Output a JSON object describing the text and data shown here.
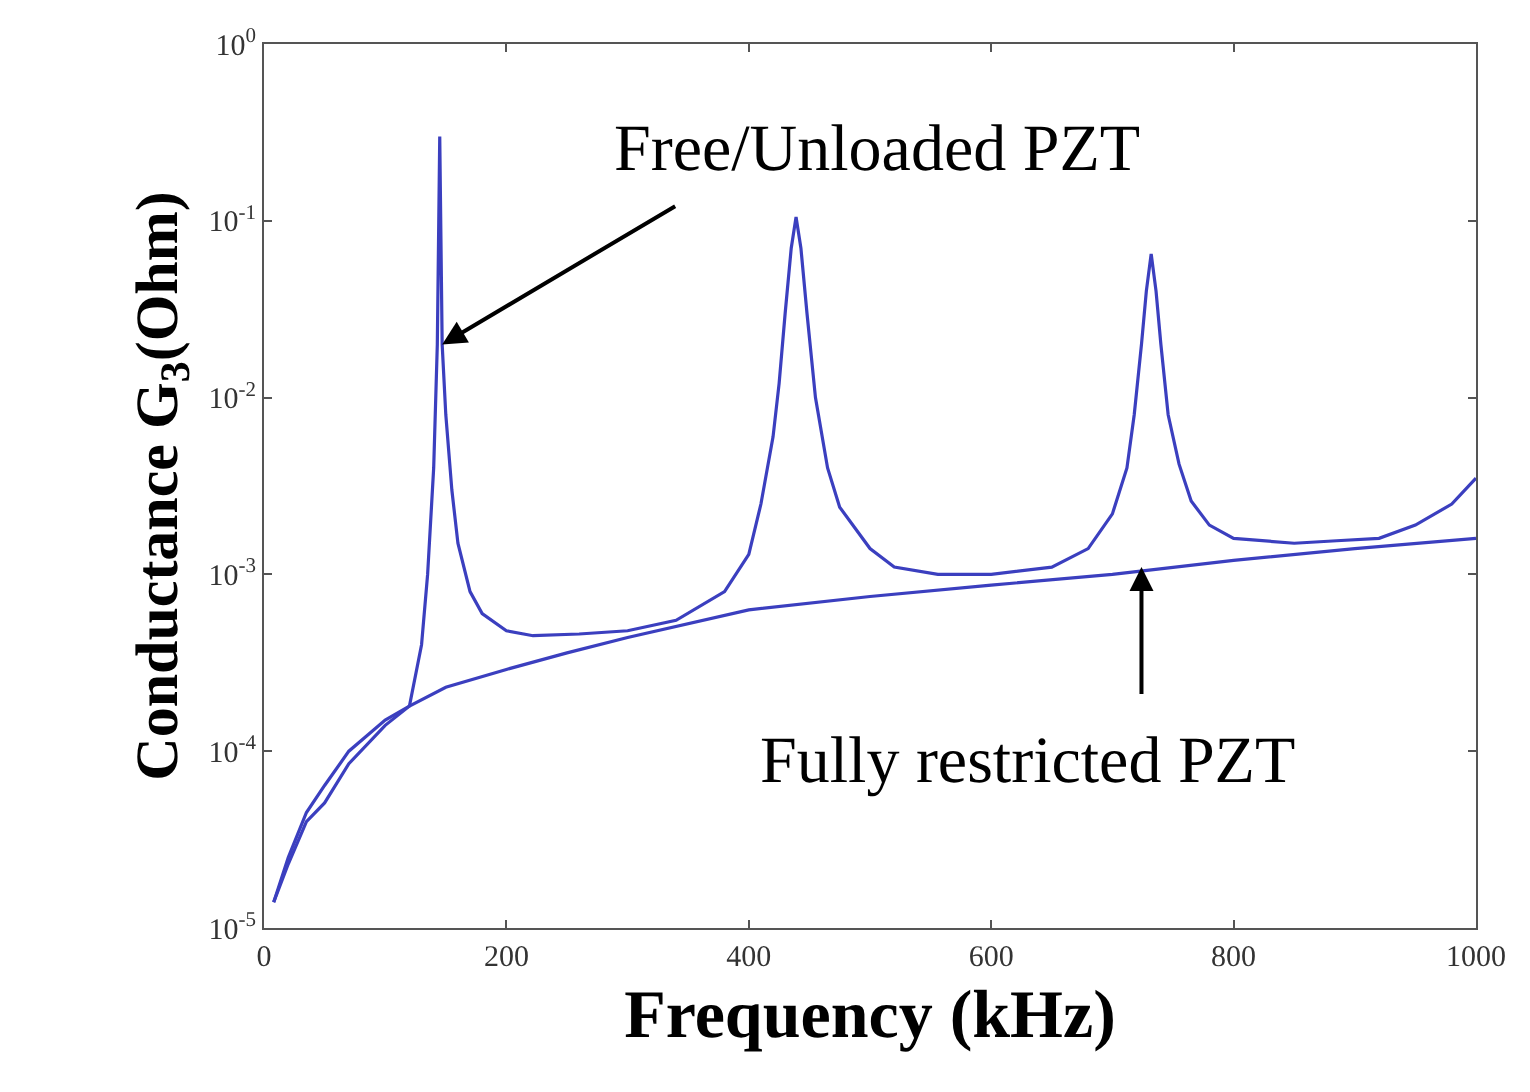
{
  "chart_data": {
    "type": "line",
    "xlabel": "Frequency (kHz)",
    "ylabel": "Conductance G$_{3}$(Ohm)",
    "log": "y",
    "marker": "none",
    "line_style": "solid",
    "xlim": [
      0,
      1000
    ],
    "xticks": [
      0,
      200,
      400,
      600,
      800,
      1000
    ],
    "ylim": [
      1e-05,
      1
    ],
    "yticks": [
      {
        "value": 1e-05,
        "label": "10$^{-5}$"
      },
      {
        "value": 0.0001,
        "label": "10$^{-4}$"
      },
      {
        "value": 0.001,
        "label": "10$^{-3}$"
      },
      {
        "value": 0.01,
        "label": "10$^{-2}$"
      },
      {
        "value": 0.1,
        "label": "10$^{-1}$"
      },
      {
        "value": 1,
        "label": "10$^{0}$"
      }
    ],
    "series": [
      {
        "color": "#3b3fbf",
        "x": [
          8,
          20,
          35,
          50,
          70,
          100,
          120,
          130,
          135,
          140,
          143,
          145,
          147,
          150,
          155,
          160,
          170,
          180,
          200,
          222,
          260,
          300,
          340,
          380,
          400,
          410,
          420,
          425,
          430,
          435,
          439,
          443,
          448,
          455,
          465,
          475,
          500,
          520,
          556,
          600,
          650,
          680,
          700,
          712,
          718,
          724,
          728,
          732,
          736,
          740,
          746,
          755,
          765,
          780,
          800,
          850,
          885,
          920,
          950,
          980,
          1000
        ],
        "values": [
          1.4e-05,
          2.5e-05,
          4.5e-05,
          6.4e-05,
          0.0001,
          0.00015,
          0.00018,
          0.0004,
          0.001,
          0.004,
          0.02,
          0.3,
          0.02,
          0.008,
          0.003,
          0.0015,
          0.0008,
          0.0006,
          0.00048,
          0.00045,
          0.00046,
          0.00048,
          0.00055,
          0.0008,
          0.0013,
          0.0025,
          0.006,
          0.012,
          0.03,
          0.07,
          0.105,
          0.07,
          0.03,
          0.01,
          0.004,
          0.0024,
          0.0014,
          0.0011,
          0.001,
          0.001,
          0.0011,
          0.0014,
          0.0022,
          0.004,
          0.008,
          0.02,
          0.04,
          0.065,
          0.04,
          0.02,
          0.008,
          0.0042,
          0.0026,
          0.0019,
          0.0016,
          0.0015,
          0.00155,
          0.0016,
          0.0019,
          0.0025,
          0.0035
        ]
      },
      {
        "color": "#3b3fbf",
        "x": [
          8,
          20,
          35,
          50,
          70,
          100,
          120,
          150,
          200,
          250,
          300,
          400,
          500,
          600,
          700,
          800,
          900,
          1000
        ],
        "values": [
          1.4e-05,
          2.3e-05,
          4e-05,
          5.1e-05,
          8.5e-05,
          0.00014,
          0.00018,
          0.00023,
          0.00029,
          0.00036,
          0.00044,
          0.00063,
          0.00075,
          0.00087,
          0.001,
          0.0012,
          0.0014,
          0.0016
        ]
      }
    ],
    "annotations": [
      {
        "text": "Free/Unloaded PZT",
        "x": 147,
        "y": 0.02
      },
      {
        "text": "Fully restricted PZT",
        "x": 724,
        "y": 0.0011
      }
    ]
  }
}
